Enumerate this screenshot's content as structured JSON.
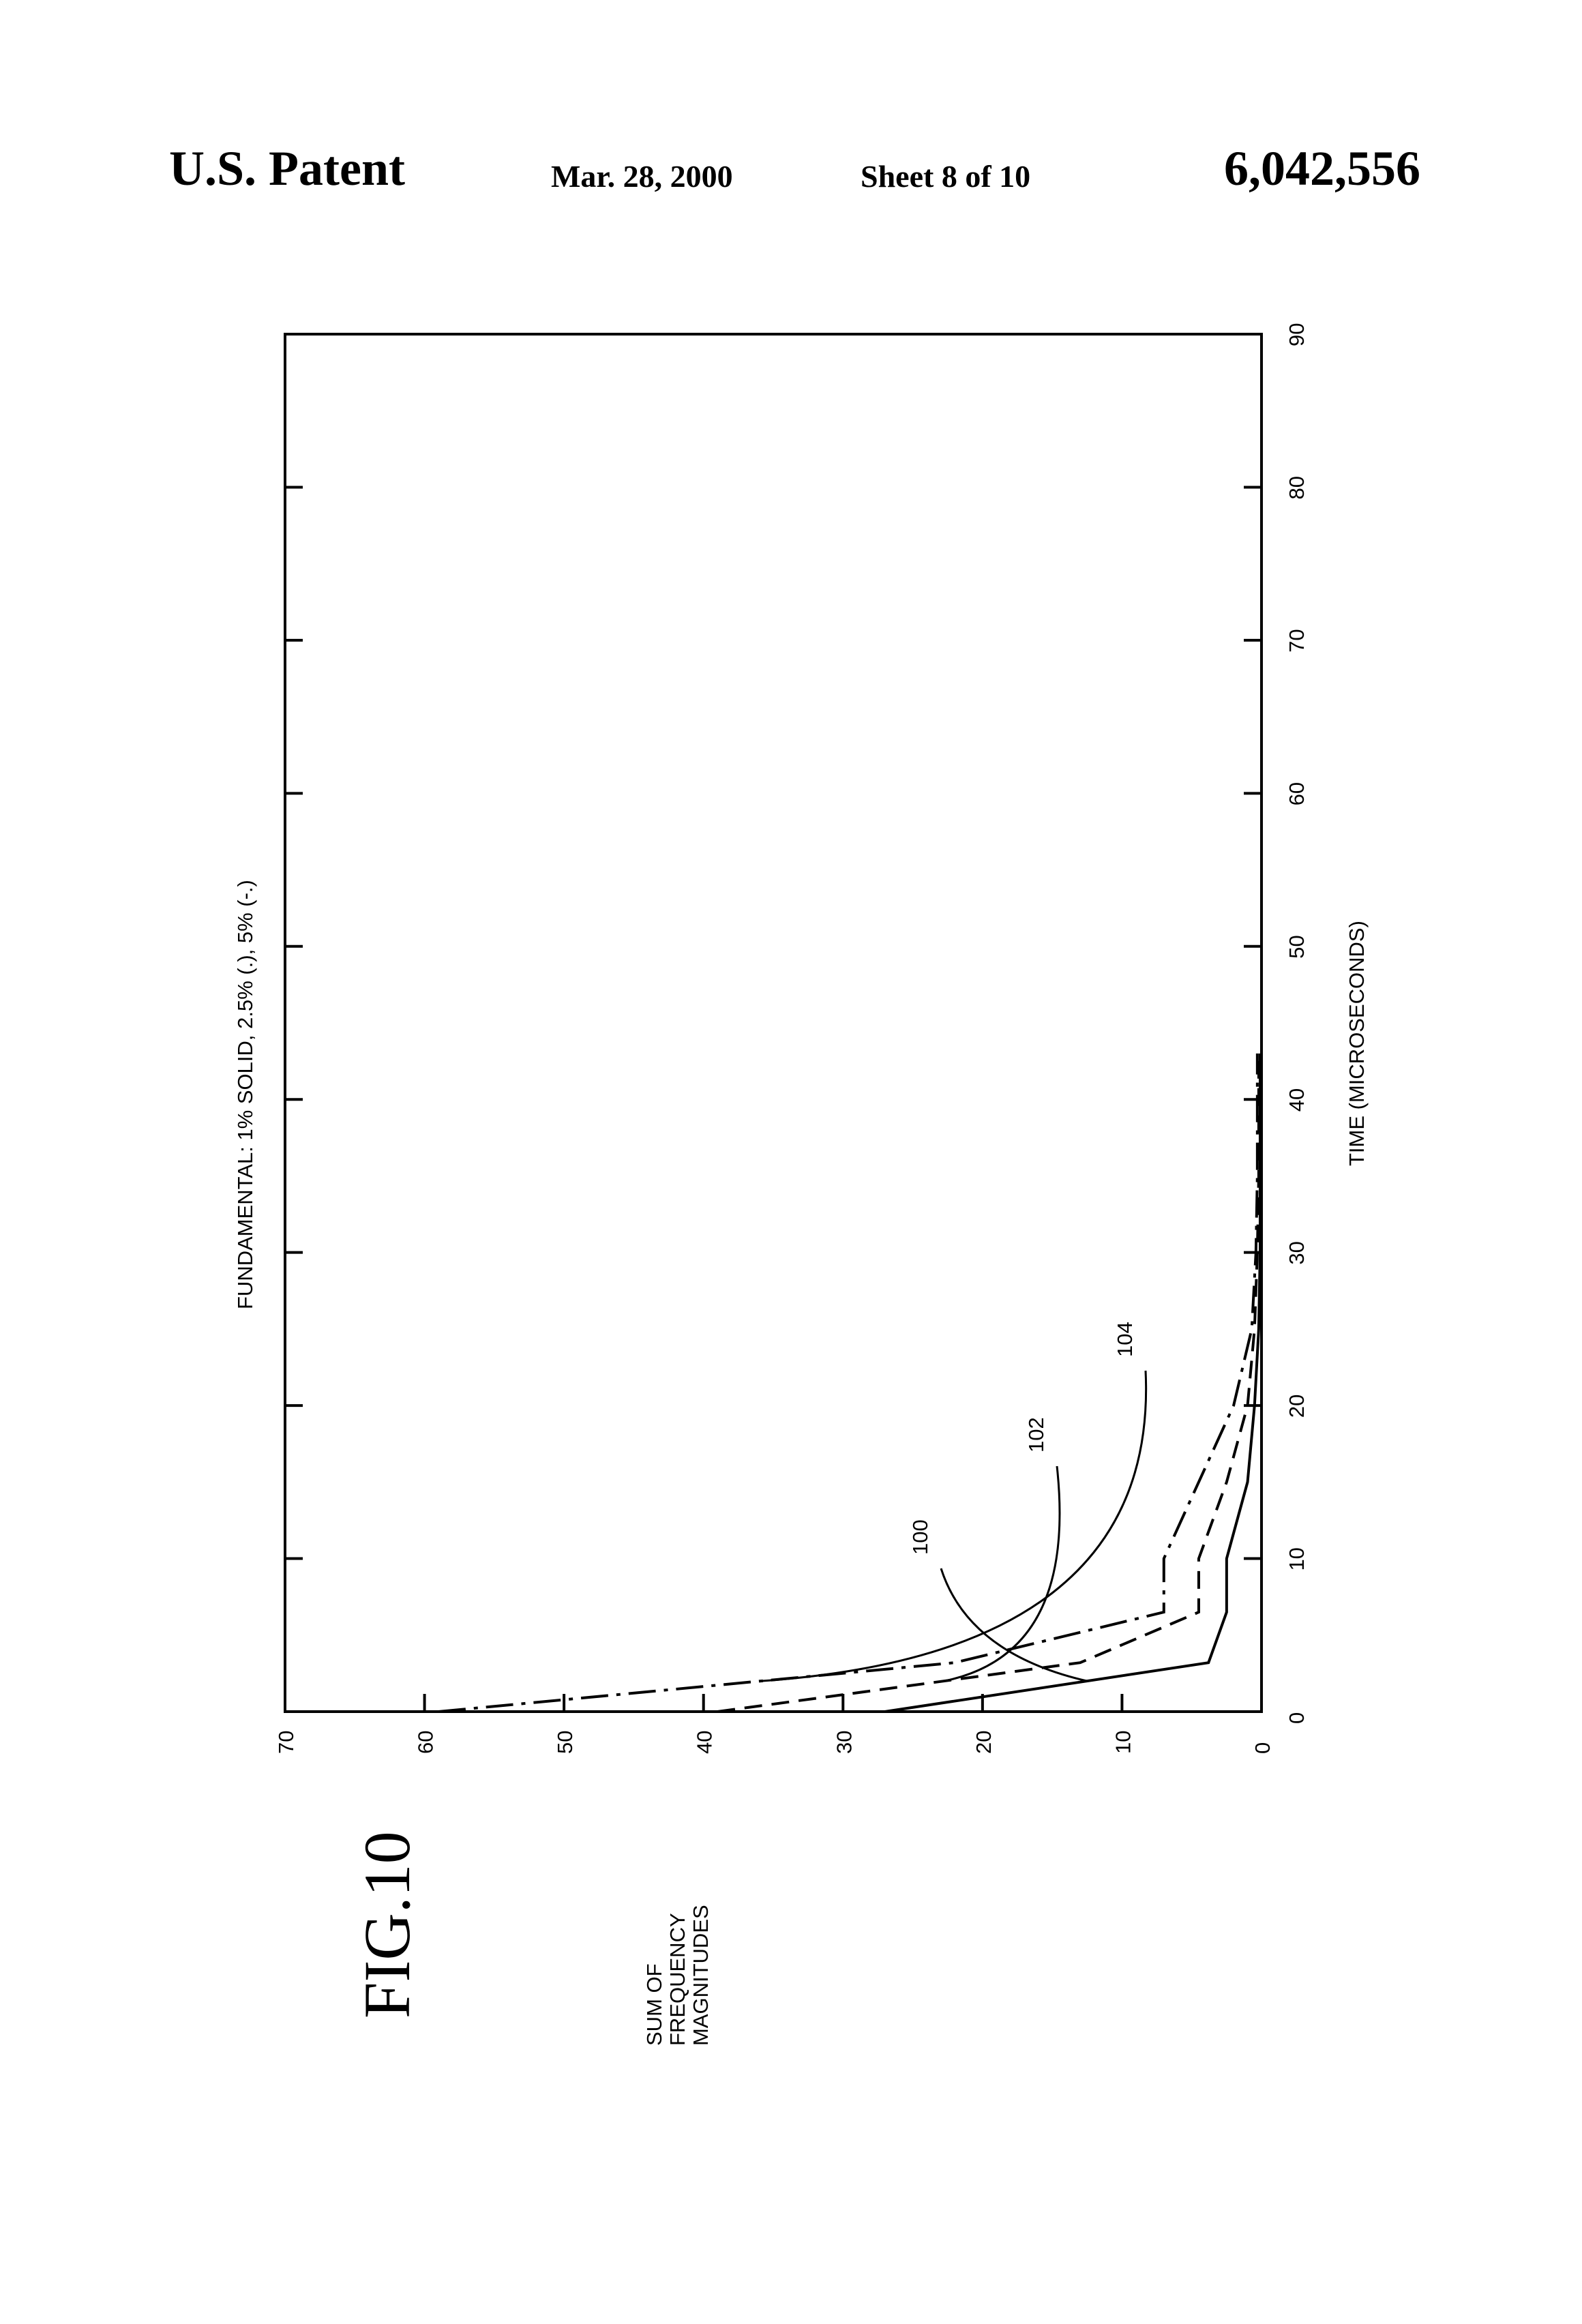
{
  "header": {
    "title": "U.S. Patent",
    "date": "Mar. 28, 2000",
    "sheet": "Sheet 8 of 10",
    "patent_number": "6,042,556"
  },
  "figure": {
    "label": "FIG.10"
  },
  "chart_data": {
    "type": "line",
    "title": "FUNDAMENTAL: 1% SOLID, 2.5% (.), 5% (-.)",
    "xlabel": "TIME (MICROSECONDS)",
    "ylabel_lines": [
      "SUM OF",
      "FREQUENCY",
      "MAGNITUDES"
    ],
    "xlim": [
      0,
      90
    ],
    "ylim": [
      0,
      70
    ],
    "x_ticks": [
      "0",
      "10",
      "20",
      "30",
      "40",
      "50",
      "60",
      "70",
      "80",
      "90"
    ],
    "y_ticks": [
      "0",
      "10",
      "20",
      "30",
      "40",
      "50",
      "60",
      "70"
    ],
    "grid": false,
    "series": [
      {
        "name": "100",
        "style": "solid",
        "x": [
          0,
          3.2,
          6.5,
          10,
          15,
          20,
          25,
          30,
          35,
          40,
          43
        ],
        "y": [
          27,
          3.8,
          2.5,
          2.5,
          1.0,
          0.5,
          0.2,
          0.1,
          0.1,
          0.1,
          0.1
        ]
      },
      {
        "name": "102",
        "style": "dashed",
        "x": [
          0,
          3.2,
          6.5,
          10,
          15,
          20,
          25,
          30,
          35,
          40,
          43
        ],
        "y": [
          39,
          13,
          4.5,
          4.5,
          2.5,
          1.0,
          0.5,
          0.3,
          0.2,
          0.2,
          0.2
        ]
      },
      {
        "name": "104",
        "style": "dash-dot",
        "x": [
          0,
          3.2,
          6.5,
          10,
          15,
          20,
          25,
          30,
          35,
          40,
          43
        ],
        "y": [
          59,
          22,
          7.0,
          7.0,
          4.5,
          2.0,
          0.7,
          0.4,
          0.3,
          0.3,
          0.3
        ]
      }
    ],
    "annotations": [
      "100",
      "102",
      "104"
    ]
  }
}
